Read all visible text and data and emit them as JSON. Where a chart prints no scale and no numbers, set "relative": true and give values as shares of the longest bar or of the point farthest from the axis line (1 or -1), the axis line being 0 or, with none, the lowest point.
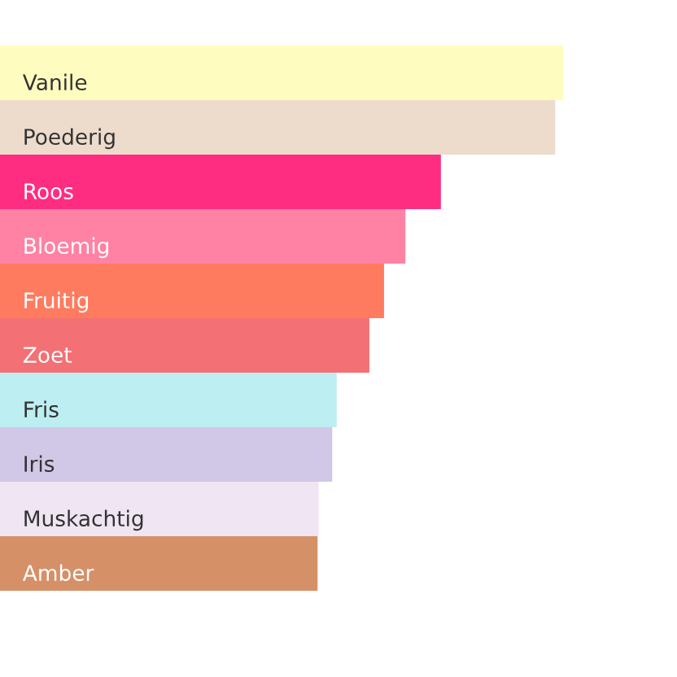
{
  "chart_data": {
    "type": "bar",
    "orientation": "horizontal",
    "relative": true,
    "categories": [
      "Vanile",
      "Poederig",
      "Roos",
      "Bloemig",
      "Fruitig",
      "Zoet",
      "Fris",
      "Iris",
      "Muskachtig",
      "Amber"
    ],
    "values": [
      1,
      0.986,
      0.783,
      0.72,
      0.682,
      0.656,
      0.598,
      0.59,
      0.566,
      0.564
    ],
    "colors": [
      "#fffcc0",
      "#eddccc",
      "#ff2d82",
      "#ff82a4",
      "#ff7b60",
      "#f37074",
      "#bdeef2",
      "#d1c7e6",
      "#f0e5f2",
      "#d59068"
    ]
  }
}
